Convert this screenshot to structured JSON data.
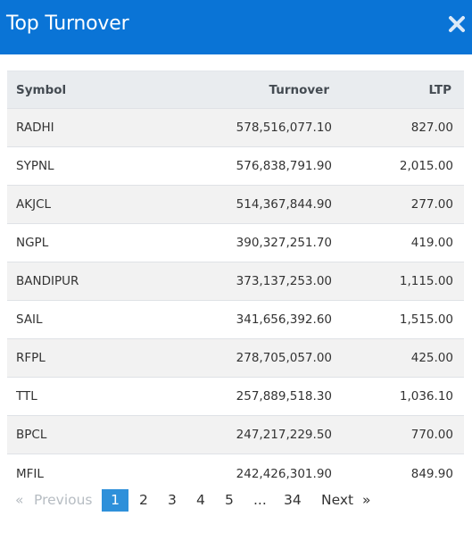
{
  "modal": {
    "title": "Top Turnover",
    "close_icon": "close-icon"
  },
  "table": {
    "columns": {
      "symbol": "Symbol",
      "turnover": "Turnover",
      "ltp": "LTP"
    },
    "rows": [
      {
        "symbol": "RADHI",
        "turnover": "578,516,077.10",
        "ltp": "827.00"
      },
      {
        "symbol": "SYPNL",
        "turnover": "576,838,791.90",
        "ltp": "2,015.00"
      },
      {
        "symbol": "AKJCL",
        "turnover": "514,367,844.90",
        "ltp": "277.00"
      },
      {
        "symbol": "NGPL",
        "turnover": "390,327,251.70",
        "ltp": "419.00"
      },
      {
        "symbol": "BANDIPUR",
        "turnover": "373,137,253.00",
        "ltp": "1,115.00"
      },
      {
        "symbol": "SAIL",
        "turnover": "341,656,392.60",
        "ltp": "1,515.00"
      },
      {
        "symbol": "RFPL",
        "turnover": "278,705,057.00",
        "ltp": "425.00"
      },
      {
        "symbol": "TTL",
        "turnover": "257,889,518.30",
        "ltp": "1,036.10"
      },
      {
        "symbol": "BPCL",
        "turnover": "247,217,229.50",
        "ltp": "770.00"
      },
      {
        "symbol": "MFIL",
        "turnover": "242,426,301.90",
        "ltp": "849.90"
      }
    ]
  },
  "pagination": {
    "prev_arrow": "«",
    "previous": "Previous",
    "pages": [
      "1",
      "2",
      "3",
      "4",
      "5"
    ],
    "ellipsis": "...",
    "last_page": "34",
    "next": "Next",
    "next_arrow": "»",
    "current": "1"
  }
}
